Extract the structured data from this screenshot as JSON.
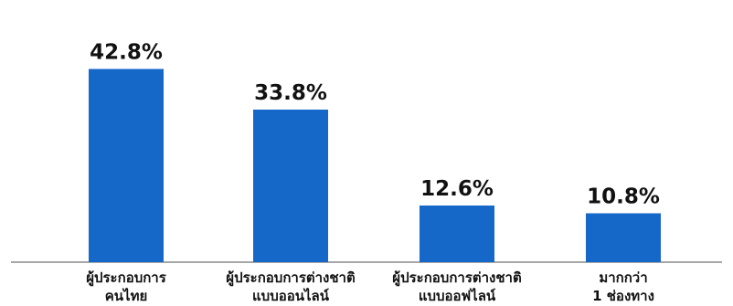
{
  "chart_data": {
    "type": "bar",
    "categories": [
      [
        "ผู้ประกอบการ",
        "คนไทย"
      ],
      [
        "ผู้ประกอบการต่างชาติ",
        "แบบออนไลน์"
      ],
      [
        "ผู้ประกอบการต่างชาติ",
        "แบบออฟไลน์"
      ],
      [
        "มากกว่า",
        "1 ช่องทาง"
      ]
    ],
    "values": [
      42.8,
      33.8,
      12.6,
      10.8
    ],
    "data_labels": [
      "42.8%",
      "33.8%",
      "12.6%",
      "10.8%"
    ],
    "ylim": [
      0,
      50
    ],
    "grid": false,
    "legend": "none"
  },
  "colors": {
    "bar": "#1668C8",
    "axis": "#8a8a8a",
    "text": "#111111"
  }
}
